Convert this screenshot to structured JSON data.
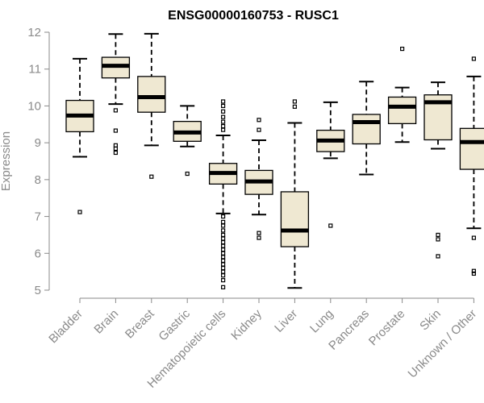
{
  "chart_data": {
    "type": "boxplot",
    "title": "ENSG00000160753 - RUSC1",
    "ylabel": "Expression",
    "xlabel": "",
    "ylim": [
      5,
      12
    ],
    "yticks": [
      5,
      6,
      7,
      8,
      9,
      10,
      11,
      12
    ],
    "grid": false,
    "box_color": "#efe8d2",
    "categories": [
      "Bladder",
      "Brain",
      "Breast",
      "Gastric",
      "Hematopoietic cells",
      "Kidney",
      "Liver",
      "Lung",
      "Pancreas",
      "Prostate",
      "Skin",
      "Unknown / Other"
    ],
    "boxes": [
      {
        "category": "Bladder",
        "whisker_low": 8.62,
        "q1": 9.3,
        "median": 9.74,
        "q3": 10.15,
        "whisker_high": 11.28,
        "outliers": [
          7.12
        ]
      },
      {
        "category": "Brain",
        "whisker_low": 10.05,
        "q1": 10.76,
        "median": 11.09,
        "q3": 11.32,
        "whisker_high": 11.95,
        "outliers": [
          9.88,
          9.33,
          8.93,
          8.84,
          8.73
        ]
      },
      {
        "category": "Breast",
        "whisker_low": 8.93,
        "q1": 9.83,
        "median": 10.24,
        "q3": 10.8,
        "whisker_high": 11.96,
        "outliers": [
          8.08
        ]
      },
      {
        "category": "Gastric",
        "whisker_low": 8.9,
        "q1": 9.04,
        "median": 9.28,
        "q3": 9.58,
        "whisker_high": 10.0,
        "outliers": [
          8.16
        ]
      },
      {
        "category": "Hematopoietic cells",
        "whisker_low": 7.08,
        "q1": 7.88,
        "median": 8.18,
        "q3": 8.44,
        "whisker_high": 9.2,
        "outliers": [
          10.12,
          10.0,
          9.85,
          9.7,
          9.57,
          9.45,
          9.35,
          7.0,
          6.85,
          6.75,
          6.62,
          6.5,
          6.4,
          6.3,
          6.2,
          6.1,
          6.0,
          5.9,
          5.8,
          5.7,
          5.6,
          5.5,
          5.4,
          5.27,
          5.08
        ]
      },
      {
        "category": "Kidney",
        "whisker_low": 7.05,
        "q1": 7.6,
        "median": 7.95,
        "q3": 8.25,
        "whisker_high": 9.07,
        "outliers": [
          9.62,
          9.35,
          6.55,
          6.42
        ]
      },
      {
        "category": "Liver",
        "whisker_low": 5.06,
        "q1": 6.18,
        "median": 6.62,
        "q3": 7.67,
        "whisker_high": 9.54,
        "outliers": [
          10.12,
          9.98
        ]
      },
      {
        "category": "Lung",
        "whisker_low": 8.58,
        "q1": 8.76,
        "median": 9.06,
        "q3": 9.34,
        "whisker_high": 10.1,
        "outliers": [
          6.75
        ]
      },
      {
        "category": "Pancreas",
        "whisker_low": 8.14,
        "q1": 8.97,
        "median": 9.56,
        "q3": 9.77,
        "whisker_high": 10.66,
        "outliers": []
      },
      {
        "category": "Prostate",
        "whisker_low": 9.02,
        "q1": 9.52,
        "median": 9.98,
        "q3": 10.24,
        "whisker_high": 10.5,
        "outliers": [
          11.55
        ]
      },
      {
        "category": "Skin",
        "whisker_low": 8.84,
        "q1": 9.08,
        "median": 10.1,
        "q3": 10.3,
        "whisker_high": 10.64,
        "outliers": [
          6.5,
          6.38,
          5.92
        ]
      },
      {
        "category": "Unknown / Other",
        "whisker_low": 6.68,
        "q1": 8.28,
        "median": 9.02,
        "q3": 9.39,
        "whisker_high": 10.8,
        "outliers": [
          11.28,
          6.42,
          5.52,
          5.45
        ]
      }
    ]
  }
}
